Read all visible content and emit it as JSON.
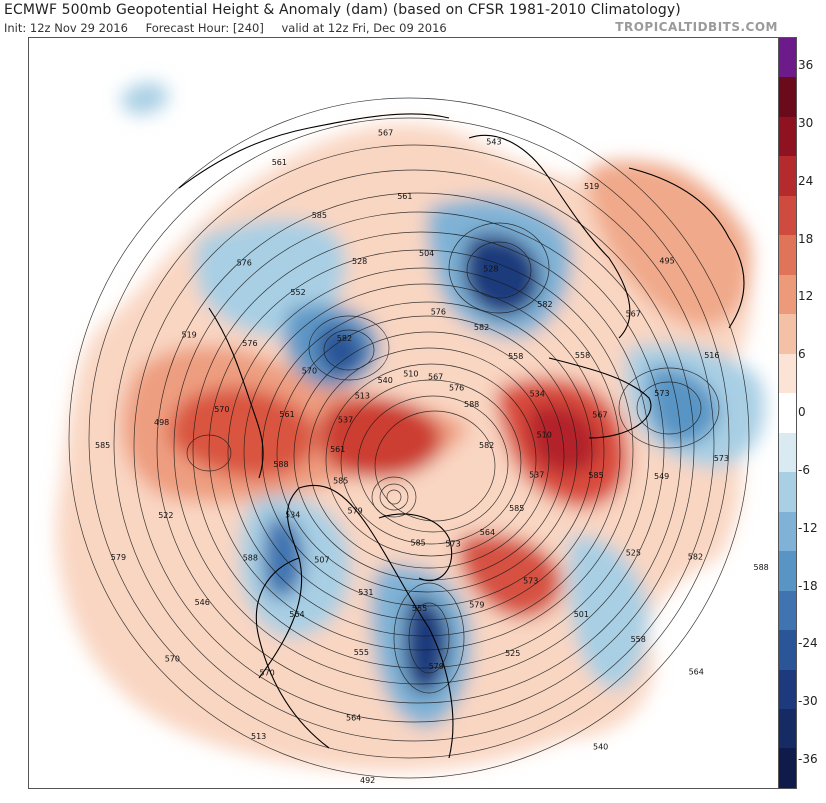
{
  "header": {
    "title": "ECMWF 500mb Geopotential Height & Anomaly (dam) (based on CFSR 1981-2010 Climatology)",
    "init": "Init: 12z Nov 29 2016",
    "forecast_hour": "Forecast Hour: [240]",
    "valid": "valid at 12z Fri, Dec 09 2016",
    "brand": "TROPICALTIDBITS.COM"
  },
  "colorbar": {
    "ticks": [
      "36",
      "30",
      "24",
      "18",
      "12",
      "6",
      "0",
      "-6",
      "-12",
      "-18",
      "-24",
      "-30",
      "-36"
    ],
    "colors": [
      "#6d1a8a",
      "#6b0a1a",
      "#8e1220",
      "#b52a2c",
      "#cf4a3f",
      "#df7458",
      "#ec9a7a",
      "#f5c1a6",
      "#fbe4d6",
      "#ffffff",
      "#d9eaf3",
      "#a9cfe4",
      "#7fb2d6",
      "#5894c4",
      "#3f74b0",
      "#2a5597",
      "#1d3a7c",
      "#162a63",
      "#0f1b4a"
    ]
  },
  "contour_labels": [
    {
      "t": "582"
    },
    {
      "t": "579"
    },
    {
      "t": "576"
    },
    {
      "t": "573"
    },
    {
      "t": "570"
    },
    {
      "t": "567"
    },
    {
      "t": "564"
    },
    {
      "t": "561"
    },
    {
      "t": "588"
    },
    {
      "t": "585"
    },
    {
      "t": "582"
    },
    {
      "t": "579"
    },
    {
      "t": "576"
    },
    {
      "t": "573"
    },
    {
      "t": "570"
    },
    {
      "t": "567"
    },
    {
      "t": "564"
    },
    {
      "t": "561"
    },
    {
      "t": "558"
    },
    {
      "t": "555"
    },
    {
      "t": "552"
    },
    {
      "t": "549"
    },
    {
      "t": "546"
    },
    {
      "t": "543"
    },
    {
      "t": "540"
    },
    {
      "t": "537"
    },
    {
      "t": "534"
    },
    {
      "t": "531"
    },
    {
      "t": "528"
    },
    {
      "t": "525"
    },
    {
      "t": "522"
    },
    {
      "t": "519"
    },
    {
      "t": "516"
    },
    {
      "t": "513"
    },
    {
      "t": "510"
    },
    {
      "t": "507"
    },
    {
      "t": "504"
    },
    {
      "t": "501"
    },
    {
      "t": "498"
    },
    {
      "t": "495"
    },
    {
      "t": "492"
    },
    {
      "t": "540"
    },
    {
      "t": "537"
    },
    {
      "t": "534"
    },
    {
      "t": "528"
    },
    {
      "t": "525"
    },
    {
      "t": "519"
    },
    {
      "t": "516"
    },
    {
      "t": "513"
    },
    {
      "t": "510"
    },
    {
      "t": "585"
    },
    {
      "t": "588"
    },
    {
      "t": "582"
    },
    {
      "t": "579"
    },
    {
      "t": "576"
    },
    {
      "t": "573"
    },
    {
      "t": "570"
    },
    {
      "t": "567"
    },
    {
      "t": "564"
    },
    {
      "t": "561"
    },
    {
      "t": "558"
    },
    {
      "t": "555"
    },
    {
      "t": "585"
    },
    {
      "t": "582"
    },
    {
      "t": "579"
    },
    {
      "t": "576"
    },
    {
      "t": "573"
    },
    {
      "t": "570"
    },
    {
      "t": "567"
    },
    {
      "t": "564"
    },
    {
      "t": "561"
    },
    {
      "t": "558"
    },
    {
      "t": "585"
    },
    {
      "t": "588"
    },
    {
      "t": "585"
    },
    {
      "t": "582"
    },
    {
      "t": "585"
    },
    {
      "t": "588"
    }
  ]
}
